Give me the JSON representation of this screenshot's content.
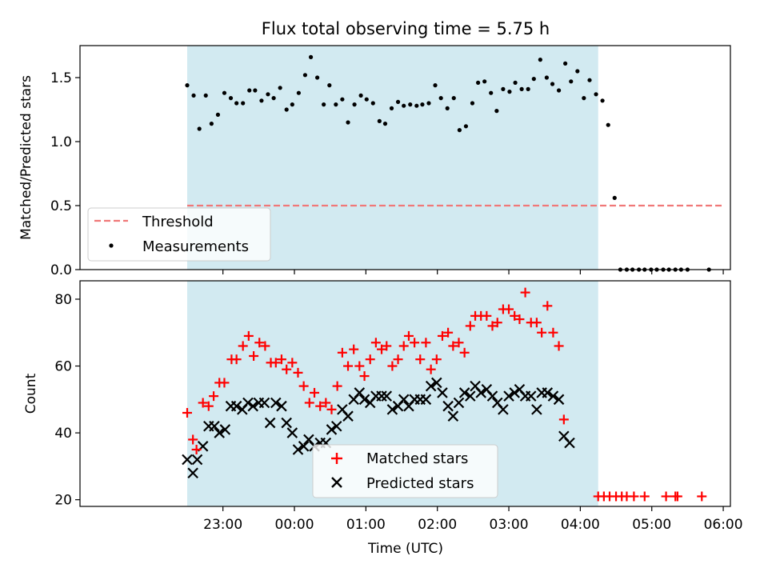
{
  "chart_data": {
    "type": "scatter",
    "title": "Flux total observing time = 5.75 h",
    "xlabel": "Time (UTC)",
    "x_unit": "hours (UTC)",
    "xlim": [
      21.0,
      30.1
    ],
    "x_ticks": [
      {
        "value": 23,
        "label": "23:00"
      },
      {
        "value": 24,
        "label": "00:00"
      },
      {
        "value": 25,
        "label": "01:00"
      },
      {
        "value": 26,
        "label": "02:00"
      },
      {
        "value": 27,
        "label": "03:00"
      },
      {
        "value": 28,
        "label": "04:00"
      },
      {
        "value": 29,
        "label": "05:00"
      },
      {
        "value": 30,
        "label": "06:00"
      }
    ],
    "observing_span": [
      22.5,
      28.25
    ],
    "colors": {
      "observing_span": "#add8e6",
      "threshold": "#f07878",
      "measurements": "#000000",
      "matched": "#ff0000",
      "predicted": "#000000"
    },
    "top": {
      "ylabel": "Matched/Predicted stars",
      "ylim": [
        0.0,
        1.75
      ],
      "y_ticks": [
        "0.0",
        "0.5",
        "1.0",
        "1.5"
      ],
      "legend_position": "lower-left",
      "threshold": {
        "name": "Threshold",
        "y": 0.5,
        "x_range": [
          22.5,
          30.0
        ]
      },
      "measurements": {
        "name": "Measurements",
        "points": [
          [
            22.5,
            1.44
          ],
          [
            22.59,
            1.36
          ],
          [
            22.67,
            1.1
          ],
          [
            22.76,
            1.36
          ],
          [
            22.84,
            1.14
          ],
          [
            22.93,
            1.21
          ],
          [
            23.02,
            1.38
          ],
          [
            23.11,
            1.34
          ],
          [
            23.19,
            1.3
          ],
          [
            23.28,
            1.3
          ],
          [
            23.37,
            1.4
          ],
          [
            23.45,
            1.4
          ],
          [
            23.54,
            1.32
          ],
          [
            23.63,
            1.37
          ],
          [
            23.71,
            1.34
          ],
          [
            23.8,
            1.42
          ],
          [
            23.89,
            1.25
          ],
          [
            23.97,
            1.29
          ],
          [
            24.06,
            1.38
          ],
          [
            24.15,
            1.52
          ],
          [
            24.23,
            1.66
          ],
          [
            24.32,
            1.5
          ],
          [
            24.41,
            1.29
          ],
          [
            24.49,
            1.44
          ],
          [
            24.58,
            1.29
          ],
          [
            24.67,
            1.33
          ],
          [
            24.75,
            1.15
          ],
          [
            24.84,
            1.29
          ],
          [
            24.93,
            1.36
          ],
          [
            25.01,
            1.33
          ],
          [
            25.1,
            1.3
          ],
          [
            25.19,
            1.16
          ],
          [
            25.27,
            1.14
          ],
          [
            25.36,
            1.26
          ],
          [
            25.45,
            1.31
          ],
          [
            25.53,
            1.28
          ],
          [
            25.62,
            1.29
          ],
          [
            25.71,
            1.28
          ],
          [
            25.79,
            1.29
          ],
          [
            25.88,
            1.3
          ],
          [
            25.97,
            1.44
          ],
          [
            26.05,
            1.34
          ],
          [
            26.14,
            1.26
          ],
          [
            26.23,
            1.34
          ],
          [
            26.31,
            1.09
          ],
          [
            26.4,
            1.12
          ],
          [
            26.49,
            1.3
          ],
          [
            26.57,
            1.46
          ],
          [
            26.66,
            1.47
          ],
          [
            26.75,
            1.38
          ],
          [
            26.83,
            1.24
          ],
          [
            26.92,
            1.41
          ],
          [
            27.01,
            1.39
          ],
          [
            27.09,
            1.46
          ],
          [
            27.18,
            1.41
          ],
          [
            27.27,
            1.41
          ],
          [
            27.35,
            1.49
          ],
          [
            27.44,
            1.64
          ],
          [
            27.53,
            1.5
          ],
          [
            27.61,
            1.45
          ],
          [
            27.7,
            1.4
          ],
          [
            27.79,
            1.61
          ],
          [
            27.87,
            1.47
          ],
          [
            27.96,
            1.55
          ],
          [
            28.05,
            1.34
          ],
          [
            28.13,
            1.48
          ],
          [
            28.22,
            1.37
          ],
          [
            28.31,
            1.32
          ],
          [
            28.39,
            1.13
          ],
          [
            28.48,
            0.56
          ],
          [
            28.56,
            0.0
          ],
          [
            28.65,
            0.0
          ],
          [
            28.73,
            0.0
          ],
          [
            28.82,
            0.0
          ],
          [
            28.9,
            0.0
          ],
          [
            28.99,
            0.0
          ],
          [
            29.07,
            0.0
          ],
          [
            29.16,
            0.0
          ],
          [
            29.24,
            0.0
          ],
          [
            29.33,
            0.0
          ],
          [
            29.41,
            0.0
          ],
          [
            29.5,
            0.0
          ],
          [
            29.8,
            0.0
          ]
        ]
      }
    },
    "bottom": {
      "ylabel": "Count",
      "ylim": [
        18.0,
        85.5
      ],
      "y_ticks": [
        "20",
        "40",
        "60",
        "80"
      ],
      "legend_position": "lower-center",
      "series": [
        {
          "name": "Matched stars",
          "marker": "plus",
          "points": [
            [
              22.5,
              46
            ],
            [
              22.58,
              38
            ],
            [
              22.63,
              35
            ],
            [
              22.72,
              49
            ],
            [
              22.8,
              48
            ],
            [
              22.87,
              51
            ],
            [
              22.95,
              55
            ],
            [
              23.02,
              55
            ],
            [
              23.12,
              62
            ],
            [
              23.19,
              62
            ],
            [
              23.28,
              66
            ],
            [
              23.36,
              69
            ],
            [
              23.43,
              63
            ],
            [
              23.51,
              67
            ],
            [
              23.59,
              66
            ],
            [
              23.67,
              61
            ],
            [
              23.74,
              61
            ],
            [
              23.82,
              62
            ],
            [
              23.89,
              59
            ],
            [
              23.97,
              61
            ],
            [
              24.05,
              58
            ],
            [
              24.13,
              54
            ],
            [
              24.21,
              49
            ],
            [
              24.28,
              52
            ],
            [
              24.36,
              48
            ],
            [
              24.44,
              49
            ],
            [
              24.52,
              47
            ],
            [
              24.6,
              54
            ],
            [
              24.67,
              64
            ],
            [
              24.75,
              60
            ],
            [
              24.83,
              65
            ],
            [
              24.91,
              60
            ],
            [
              24.98,
              57
            ],
            [
              25.06,
              62
            ],
            [
              25.14,
              67
            ],
            [
              25.22,
              65
            ],
            [
              25.29,
              66
            ],
            [
              25.37,
              60
            ],
            [
              25.45,
              62
            ],
            [
              25.53,
              66
            ],
            [
              25.6,
              69
            ],
            [
              25.68,
              67
            ],
            [
              25.76,
              62
            ],
            [
              25.84,
              67
            ],
            [
              25.91,
              59
            ],
            [
              25.99,
              62
            ],
            [
              26.07,
              69
            ],
            [
              26.15,
              70
            ],
            [
              26.22,
              66
            ],
            [
              26.3,
              67
            ],
            [
              26.38,
              64
            ],
            [
              26.46,
              72
            ],
            [
              26.53,
              75
            ],
            [
              26.61,
              75
            ],
            [
              26.69,
              75
            ],
            [
              26.77,
              72
            ],
            [
              26.84,
              73
            ],
            [
              26.92,
              77
            ],
            [
              27.0,
              77
            ],
            [
              27.08,
              75
            ],
            [
              27.15,
              74
            ],
            [
              27.23,
              82
            ],
            [
              27.31,
              73
            ],
            [
              27.39,
              73
            ],
            [
              27.46,
              70
            ],
            [
              27.54,
              78
            ],
            [
              27.62,
              70
            ],
            [
              27.7,
              66
            ],
            [
              27.77,
              44
            ],
            [
              28.25,
              21
            ],
            [
              28.33,
              21
            ],
            [
              28.41,
              21
            ],
            [
              28.5,
              21
            ],
            [
              28.58,
              21
            ],
            [
              28.65,
              21
            ],
            [
              28.75,
              21
            ],
            [
              28.9,
              21
            ],
            [
              29.2,
              21
            ],
            [
              29.33,
              21
            ],
            [
              29.36,
              21
            ],
            [
              29.7,
              21
            ]
          ]
        },
        {
          "name": "Predicted stars",
          "marker": "x",
          "points": [
            [
              22.5,
              32
            ],
            [
              22.58,
              28
            ],
            [
              22.64,
              32
            ],
            [
              22.72,
              36
            ],
            [
              22.8,
              42
            ],
            [
              22.88,
              42
            ],
            [
              22.95,
              40
            ],
            [
              23.03,
              41
            ],
            [
              23.11,
              48
            ],
            [
              23.19,
              48
            ],
            [
              23.27,
              47
            ],
            [
              23.35,
              49
            ],
            [
              23.42,
              48
            ],
            [
              23.5,
              49
            ],
            [
              23.58,
              49
            ],
            [
              23.66,
              43
            ],
            [
              23.74,
              49
            ],
            [
              23.82,
              48
            ],
            [
              23.89,
              43
            ],
            [
              23.97,
              40
            ],
            [
              24.05,
              35
            ],
            [
              24.13,
              36
            ],
            [
              24.2,
              38
            ],
            [
              24.28,
              36
            ],
            [
              24.36,
              37
            ],
            [
              24.44,
              37
            ],
            [
              24.52,
              41
            ],
            [
              24.59,
              42
            ],
            [
              24.67,
              47
            ],
            [
              24.75,
              45
            ],
            [
              24.83,
              50
            ],
            [
              24.91,
              52
            ],
            [
              24.98,
              50
            ],
            [
              25.06,
              49
            ],
            [
              25.14,
              51
            ],
            [
              25.22,
              51
            ],
            [
              25.29,
              51
            ],
            [
              25.37,
              47
            ],
            [
              25.45,
              48
            ],
            [
              25.53,
              50
            ],
            [
              25.6,
              48
            ],
            [
              25.68,
              50
            ],
            [
              25.76,
              50
            ],
            [
              25.84,
              50
            ],
            [
              25.91,
              54
            ],
            [
              25.99,
              55
            ],
            [
              26.07,
              52
            ],
            [
              26.15,
              48
            ],
            [
              26.22,
              45
            ],
            [
              26.3,
              49
            ],
            [
              26.38,
              52
            ],
            [
              26.46,
              51
            ],
            [
              26.53,
              54
            ],
            [
              26.61,
              52
            ],
            [
              26.69,
              53
            ],
            [
              26.77,
              51
            ],
            [
              26.84,
              49
            ],
            [
              26.92,
              47
            ],
            [
              27.0,
              51
            ],
            [
              27.08,
              52
            ],
            [
              27.15,
              53
            ],
            [
              27.23,
              51
            ],
            [
              27.31,
              51
            ],
            [
              27.39,
              47
            ],
            [
              27.46,
              52
            ],
            [
              27.54,
              52
            ],
            [
              27.62,
              51
            ],
            [
              27.7,
              50
            ],
            [
              27.77,
              39
            ],
            [
              27.85,
              37
            ]
          ]
        }
      ]
    }
  }
}
